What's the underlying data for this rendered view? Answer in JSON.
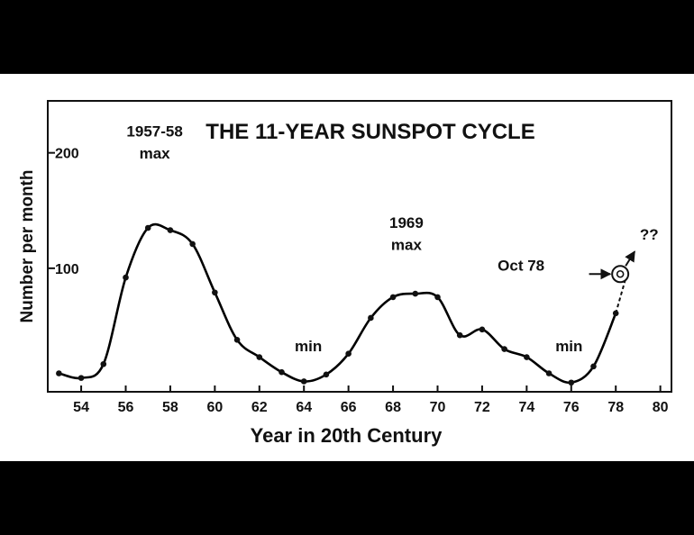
{
  "chart_data": {
    "type": "line",
    "title": "THE 11-YEAR SUNSPOT CYCLE",
    "xlabel": "Year in 20th Century",
    "ylabel": "Number per month",
    "xlim": [
      52.5,
      80.5
    ],
    "ylim": [
      -7,
      245
    ],
    "x_ticks": [
      54,
      56,
      58,
      60,
      62,
      64,
      66,
      68,
      70,
      72,
      74,
      76,
      78,
      80
    ],
    "x_tick_labels": [
      "54",
      "56",
      "58",
      "60",
      "62",
      "64",
      "66",
      "68",
      "70",
      "72",
      "74",
      "76",
      "78",
      "80"
    ],
    "y_ticks": [
      100,
      200
    ],
    "y_tick_labels": [
      "100",
      "200"
    ],
    "grid": false,
    "legend": "none",
    "line_color": "#000000",
    "series": [
      {
        "x": [
          53,
          54,
          55,
          56,
          57,
          58,
          59,
          60,
          61,
          62,
          63,
          64,
          65,
          66,
          67,
          68,
          69,
          70,
          71,
          72,
          73,
          74,
          75,
          76,
          77,
          78
        ],
        "y": [
          9,
          5,
          17,
          92,
          135,
          133,
          121,
          79,
          38,
          23,
          10,
          2,
          8,
          26,
          57,
          75,
          78,
          75,
          42,
          47,
          30,
          23,
          9,
          1,
          15,
          61
        ]
      }
    ],
    "projection": {
      "x": [
        78,
        78.5
      ],
      "y": [
        61,
        95
      ],
      "style": "dashed"
    },
    "annotations": [
      {
        "text": "1957-58",
        "x": 57.3,
        "y": 214
      },
      {
        "text": "max",
        "x": 57.3,
        "y": 195
      },
      {
        "text": "min",
        "x": 64.2,
        "y": 28
      },
      {
        "text": "1969",
        "x": 68.6,
        "y": 135
      },
      {
        "text": "max",
        "x": 68.6,
        "y": 116
      },
      {
        "text": "min",
        "x": 75.9,
        "y": 28
      },
      {
        "text": "Oct 78",
        "x": 74.8,
        "y": 98
      },
      {
        "text": "??",
        "x": 79.5,
        "y": 125
      }
    ],
    "marker": {
      "label": "Oct 78",
      "x": 78.2,
      "y": 95,
      "symbol": "circled-dot",
      "arrow_from_x": 76.8
    }
  }
}
